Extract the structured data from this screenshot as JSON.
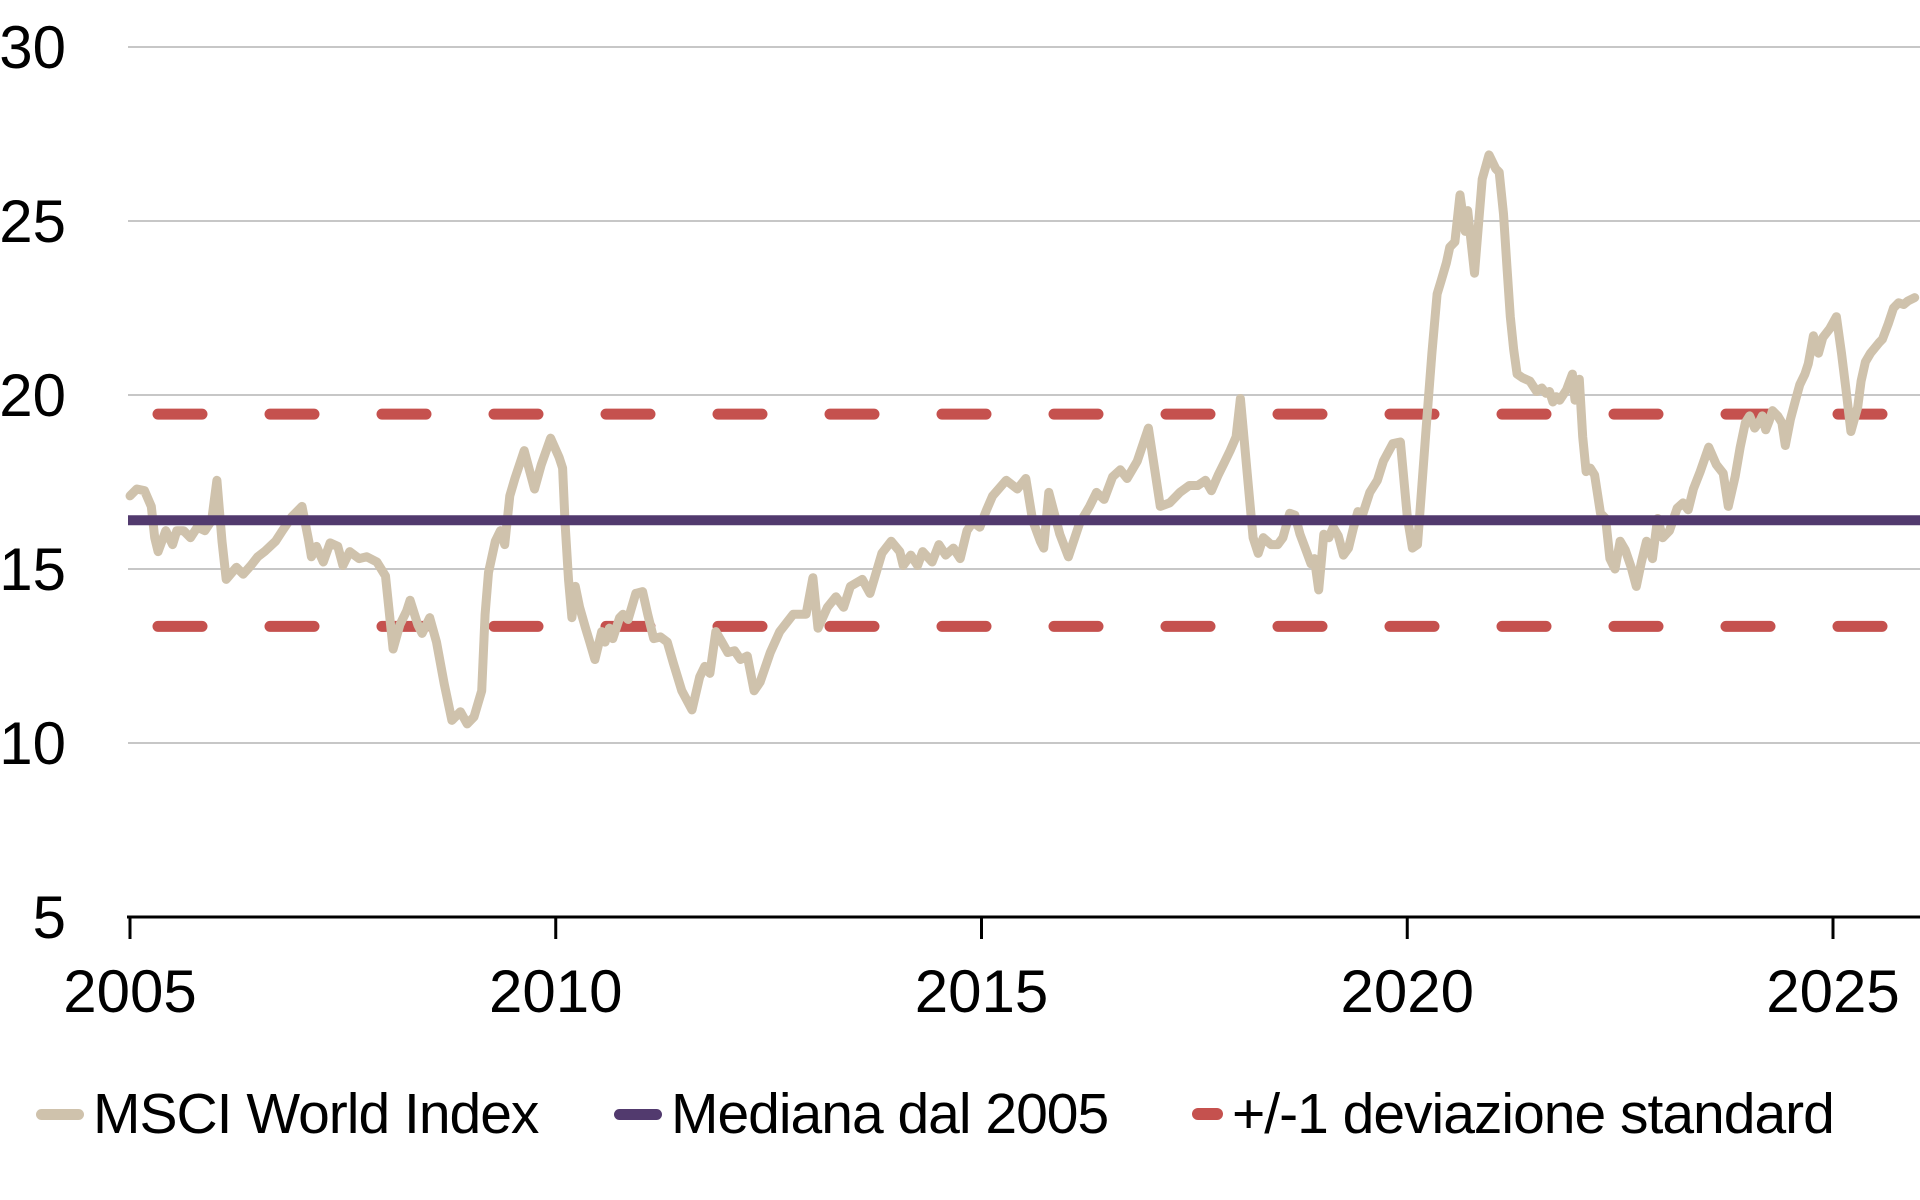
{
  "chart_data": {
    "type": "line",
    "title": "",
    "xlabel": "",
    "ylabel": "",
    "x_axis": {
      "ticks": [
        2005,
        2010,
        2015,
        2020,
        2025
      ],
      "range": [
        2005,
        2026.0
      ],
      "gridlines": false
    },
    "y_axis": {
      "ticks": [
        30,
        25,
        20,
        15,
        10,
        5
      ],
      "range": [
        5,
        30
      ],
      "gridlines": [
        30,
        25,
        20,
        15,
        10
      ]
    },
    "legend_position": "bottom",
    "colors": {
      "series_line": "#cfc2ac",
      "median_line": "#523a6e",
      "stddev_line": "#c5514e",
      "gridline": "#c7c7c7",
      "axis": "#000000",
      "text": "#000000",
      "background": "#ffffff"
    },
    "series": [
      {
        "name": "MSCI World Index",
        "type": "line",
        "color": "#cfc2ac",
        "points": [
          [
            2005.0,
            17.1
          ],
          [
            2005.08,
            17.3
          ],
          [
            2005.17,
            17.25
          ],
          [
            2005.25,
            16.8
          ],
          [
            2005.29,
            15.9
          ],
          [
            2005.33,
            15.5
          ],
          [
            2005.42,
            16.1
          ],
          [
            2005.5,
            15.7
          ],
          [
            2005.55,
            16.1
          ],
          [
            2005.63,
            16.1
          ],
          [
            2005.71,
            15.9
          ],
          [
            2005.79,
            16.2
          ],
          [
            2005.88,
            16.1
          ],
          [
            2005.96,
            16.4
          ],
          [
            2006.02,
            17.55
          ],
          [
            2006.08,
            15.8
          ],
          [
            2006.13,
            14.7
          ],
          [
            2006.25,
            15.05
          ],
          [
            2006.33,
            14.85
          ],
          [
            2006.42,
            15.1
          ],
          [
            2006.5,
            15.35
          ],
          [
            2006.58,
            15.5
          ],
          [
            2006.71,
            15.8
          ],
          [
            2006.79,
            16.1
          ],
          [
            2006.9,
            16.5
          ],
          [
            2007.02,
            16.8
          ],
          [
            2007.1,
            15.8
          ],
          [
            2007.13,
            15.35
          ],
          [
            2007.19,
            15.65
          ],
          [
            2007.27,
            15.2
          ],
          [
            2007.35,
            15.75
          ],
          [
            2007.44,
            15.65
          ],
          [
            2007.5,
            15.1
          ],
          [
            2007.58,
            15.5
          ],
          [
            2007.69,
            15.3
          ],
          [
            2007.78,
            15.35
          ],
          [
            2007.9,
            15.2
          ],
          [
            2008.0,
            14.8
          ],
          [
            2008.09,
            12.7
          ],
          [
            2008.17,
            13.4
          ],
          [
            2008.25,
            13.8
          ],
          [
            2008.29,
            14.1
          ],
          [
            2008.38,
            13.4
          ],
          [
            2008.43,
            13.15
          ],
          [
            2008.52,
            13.6
          ],
          [
            2008.6,
            12.9
          ],
          [
            2008.69,
            11.7
          ],
          [
            2008.78,
            10.65
          ],
          [
            2008.88,
            10.9
          ],
          [
            2008.96,
            10.55
          ],
          [
            2009.04,
            10.75
          ],
          [
            2009.13,
            11.5
          ],
          [
            2009.17,
            13.7
          ],
          [
            2009.21,
            14.9
          ],
          [
            2009.29,
            15.8
          ],
          [
            2009.35,
            16.1
          ],
          [
            2009.4,
            15.7
          ],
          [
            2009.46,
            17.1
          ],
          [
            2009.52,
            17.6
          ],
          [
            2009.63,
            18.4
          ],
          [
            2009.75,
            17.3
          ],
          [
            2009.83,
            18.0
          ],
          [
            2009.94,
            18.76
          ],
          [
            2010.04,
            18.2
          ],
          [
            2010.08,
            17.9
          ],
          [
            2010.11,
            16.3
          ],
          [
            2010.15,
            14.7
          ],
          [
            2010.19,
            13.6
          ],
          [
            2010.23,
            14.5
          ],
          [
            2010.28,
            13.9
          ],
          [
            2010.35,
            13.3
          ],
          [
            2010.4,
            12.9
          ],
          [
            2010.46,
            12.4
          ],
          [
            2010.54,
            13.2
          ],
          [
            2010.58,
            12.9
          ],
          [
            2010.63,
            13.3
          ],
          [
            2010.67,
            13.0
          ],
          [
            2010.75,
            13.6
          ],
          [
            2010.79,
            13.7
          ],
          [
            2010.85,
            13.55
          ],
          [
            2010.94,
            14.3
          ],
          [
            2011.02,
            14.35
          ],
          [
            2011.08,
            13.7
          ],
          [
            2011.15,
            13.0
          ],
          [
            2011.23,
            13.05
          ],
          [
            2011.31,
            12.9
          ],
          [
            2011.38,
            12.3
          ],
          [
            2011.48,
            11.5
          ],
          [
            2011.6,
            10.95
          ],
          [
            2011.69,
            11.9
          ],
          [
            2011.75,
            12.2
          ],
          [
            2011.81,
            12.0
          ],
          [
            2011.88,
            13.2
          ],
          [
            2011.94,
            12.95
          ],
          [
            2012.02,
            12.6
          ],
          [
            2012.1,
            12.65
          ],
          [
            2012.17,
            12.4
          ],
          [
            2012.25,
            12.5
          ],
          [
            2012.33,
            11.5
          ],
          [
            2012.4,
            11.75
          ],
          [
            2012.52,
            12.6
          ],
          [
            2012.63,
            13.2
          ],
          [
            2012.79,
            13.7
          ],
          [
            2012.94,
            13.7
          ],
          [
            2013.02,
            14.75
          ],
          [
            2013.08,
            13.3
          ],
          [
            2013.19,
            13.9
          ],
          [
            2013.29,
            14.2
          ],
          [
            2013.38,
            13.9
          ],
          [
            2013.46,
            14.5
          ],
          [
            2013.6,
            14.7
          ],
          [
            2013.69,
            14.3
          ],
          [
            2013.83,
            15.45
          ],
          [
            2013.94,
            15.8
          ],
          [
            2014.04,
            15.5
          ],
          [
            2014.08,
            15.1
          ],
          [
            2014.17,
            15.4
          ],
          [
            2014.25,
            15.1
          ],
          [
            2014.31,
            15.5
          ],
          [
            2014.42,
            15.2
          ],
          [
            2014.5,
            15.7
          ],
          [
            2014.58,
            15.4
          ],
          [
            2014.67,
            15.6
          ],
          [
            2014.75,
            15.3
          ],
          [
            2014.83,
            16.1
          ],
          [
            2014.9,
            16.35
          ],
          [
            2014.98,
            16.2
          ],
          [
            2015.06,
            16.7
          ],
          [
            2015.13,
            17.1
          ],
          [
            2015.29,
            17.55
          ],
          [
            2015.42,
            17.3
          ],
          [
            2015.52,
            17.6
          ],
          [
            2015.6,
            16.4
          ],
          [
            2015.69,
            15.8
          ],
          [
            2015.73,
            15.6
          ],
          [
            2015.79,
            17.2
          ],
          [
            2015.92,
            16.0
          ],
          [
            2016.02,
            15.35
          ],
          [
            2016.15,
            16.3
          ],
          [
            2016.27,
            16.8
          ],
          [
            2016.35,
            17.2
          ],
          [
            2016.44,
            17.0
          ],
          [
            2016.54,
            17.65
          ],
          [
            2016.63,
            17.85
          ],
          [
            2016.71,
            17.6
          ],
          [
            2016.83,
            18.1
          ],
          [
            2016.96,
            19.05
          ],
          [
            2017.1,
            16.8
          ],
          [
            2017.21,
            16.9
          ],
          [
            2017.33,
            17.2
          ],
          [
            2017.44,
            17.4
          ],
          [
            2017.54,
            17.4
          ],
          [
            2017.63,
            17.55
          ],
          [
            2017.7,
            17.25
          ],
          [
            2017.78,
            17.7
          ],
          [
            2017.85,
            18.05
          ],
          [
            2017.92,
            18.4
          ],
          [
            2017.99,
            18.8
          ],
          [
            2018.04,
            19.9
          ],
          [
            2018.13,
            17.5
          ],
          [
            2018.19,
            15.9
          ],
          [
            2018.25,
            15.45
          ],
          [
            2018.31,
            15.9
          ],
          [
            2018.4,
            15.7
          ],
          [
            2018.48,
            15.7
          ],
          [
            2018.54,
            15.9
          ],
          [
            2018.62,
            16.6
          ],
          [
            2018.68,
            16.55
          ],
          [
            2018.74,
            16.0
          ],
          [
            2018.81,
            15.55
          ],
          [
            2018.87,
            15.15
          ],
          [
            2018.91,
            15.3
          ],
          [
            2018.96,
            14.4
          ],
          [
            2019.02,
            16.0
          ],
          [
            2019.08,
            15.9
          ],
          [
            2019.13,
            16.2
          ],
          [
            2019.19,
            15.95
          ],
          [
            2019.25,
            15.4
          ],
          [
            2019.31,
            15.6
          ],
          [
            2019.37,
            16.2
          ],
          [
            2019.42,
            16.65
          ],
          [
            2019.48,
            16.6
          ],
          [
            2019.56,
            17.2
          ],
          [
            2019.65,
            17.55
          ],
          [
            2019.72,
            18.1
          ],
          [
            2019.83,
            18.6
          ],
          [
            2019.92,
            18.65
          ],
          [
            2020.0,
            16.5
          ],
          [
            2020.06,
            15.6
          ],
          [
            2020.12,
            15.7
          ],
          [
            2020.23,
            19.3
          ],
          [
            2020.29,
            21.2
          ],
          [
            2020.35,
            22.9
          ],
          [
            2020.4,
            23.3
          ],
          [
            2020.46,
            23.8
          ],
          [
            2020.5,
            24.25
          ],
          [
            2020.56,
            24.4
          ],
          [
            2020.62,
            25.75
          ],
          [
            2020.68,
            24.7
          ],
          [
            2020.71,
            25.3
          ],
          [
            2020.79,
            23.5
          ],
          [
            2020.88,
            26.2
          ],
          [
            2020.96,
            26.9
          ],
          [
            2021.04,
            26.5
          ],
          [
            2021.08,
            26.4
          ],
          [
            2021.13,
            25.2
          ],
          [
            2021.17,
            23.7
          ],
          [
            2021.21,
            22.25
          ],
          [
            2021.25,
            21.3
          ],
          [
            2021.29,
            20.6
          ],
          [
            2021.35,
            20.5
          ],
          [
            2021.44,
            20.4
          ],
          [
            2021.52,
            20.1
          ],
          [
            2021.58,
            20.2
          ],
          [
            2021.63,
            20.05
          ],
          [
            2021.67,
            20.1
          ],
          [
            2021.71,
            19.8
          ],
          [
            2021.75,
            19.95
          ],
          [
            2021.79,
            19.85
          ],
          [
            2021.87,
            20.15
          ],
          [
            2021.94,
            20.6
          ],
          [
            2021.97,
            19.85
          ],
          [
            2022.02,
            20.45
          ],
          [
            2022.06,
            18.8
          ],
          [
            2022.1,
            17.8
          ],
          [
            2022.15,
            17.9
          ],
          [
            2022.2,
            17.7
          ],
          [
            2022.27,
            16.6
          ],
          [
            2022.33,
            16.45
          ],
          [
            2022.38,
            15.3
          ],
          [
            2022.44,
            15.0
          ],
          [
            2022.5,
            15.8
          ],
          [
            2022.56,
            15.55
          ],
          [
            2022.63,
            15.05
          ],
          [
            2022.69,
            14.5
          ],
          [
            2022.75,
            15.2
          ],
          [
            2022.81,
            15.8
          ],
          [
            2022.88,
            15.3
          ],
          [
            2022.94,
            16.45
          ],
          [
            2023.0,
            15.9
          ],
          [
            2023.08,
            16.1
          ],
          [
            2023.17,
            16.75
          ],
          [
            2023.24,
            16.9
          ],
          [
            2023.3,
            16.7
          ],
          [
            2023.36,
            17.3
          ],
          [
            2023.44,
            17.8
          ],
          [
            2023.54,
            18.5
          ],
          [
            2023.63,
            18.0
          ],
          [
            2023.71,
            17.75
          ],
          [
            2023.77,
            16.8
          ],
          [
            2023.85,
            17.65
          ],
          [
            2023.91,
            18.5
          ],
          [
            2023.97,
            19.2
          ],
          [
            2024.02,
            19.4
          ],
          [
            2024.08,
            19.05
          ],
          [
            2024.14,
            19.25
          ],
          [
            2024.17,
            19.4
          ],
          [
            2024.21,
            19.0
          ],
          [
            2024.25,
            19.25
          ],
          [
            2024.29,
            19.55
          ],
          [
            2024.35,
            19.4
          ],
          [
            2024.4,
            19.2
          ],
          [
            2024.44,
            18.55
          ],
          [
            2024.5,
            19.3
          ],
          [
            2024.56,
            19.85
          ],
          [
            2024.61,
            20.3
          ],
          [
            2024.67,
            20.6
          ],
          [
            2024.71,
            20.9
          ],
          [
            2024.77,
            21.7
          ],
          [
            2024.83,
            21.2
          ],
          [
            2024.88,
            21.65
          ],
          [
            2024.96,
            21.9
          ],
          [
            2025.04,
            22.25
          ],
          [
            2025.1,
            21.2
          ],
          [
            2025.15,
            20.2
          ],
          [
            2025.21,
            18.95
          ],
          [
            2025.29,
            19.65
          ],
          [
            2025.33,
            20.4
          ],
          [
            2025.38,
            20.95
          ],
          [
            2025.44,
            21.2
          ],
          [
            2025.54,
            21.5
          ],
          [
            2025.58,
            21.6
          ],
          [
            2025.65,
            22.05
          ],
          [
            2025.71,
            22.5
          ],
          [
            2025.77,
            22.65
          ],
          [
            2025.83,
            22.6
          ],
          [
            2025.88,
            22.7
          ],
          [
            2025.96,
            22.8
          ]
        ]
      },
      {
        "name": "Mediana dal 2005",
        "type": "hline",
        "color": "#523a6e",
        "value": 16.4
      },
      {
        "name": "+/-1 deviazione standard",
        "type": "hline-dashed",
        "color": "#c5514e",
        "values": [
          19.45,
          13.35
        ]
      }
    ]
  },
  "legend": {
    "items": [
      {
        "label": "MSCI World Index",
        "swatch": "line-beige"
      },
      {
        "label": "Mediana dal 2005",
        "swatch": "line-purple"
      },
      {
        "label": "+/-1 deviazione standard",
        "swatch": "dash-red"
      }
    ]
  }
}
